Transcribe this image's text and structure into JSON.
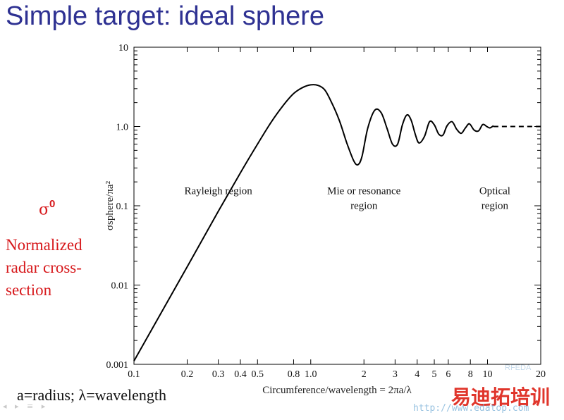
{
  "slide": {
    "title": "Simple target: ideal sphere",
    "side_symbol": "σ",
    "side_symbol_sup": "0",
    "side_description": [
      "Normalized",
      "radar cross-",
      "section"
    ],
    "footnote": "a=radius; λ=wavelength",
    "nav_glyphs": "◂ ▸ ≡ ▸"
  },
  "watermark": {
    "rf": "RFEDA",
    "cn": "易迪拓培训",
    "url": "http://www.edatop.com"
  },
  "colors": {
    "title": "#2e3192",
    "annotation": "#d7191c",
    "curve": "#000000"
  },
  "chart_data": {
    "type": "line",
    "xscale": "log",
    "yscale": "log",
    "xlim": [
      0.1,
      20
    ],
    "ylim": [
      0.001,
      10
    ],
    "xlabel": "Circumference/wavelength = 2πa/λ",
    "ylabel": "σsphere/πa²",
    "x_ticks": [
      {
        "v": 0.1,
        "label": "0.1"
      },
      {
        "v": 0.2,
        "label": "0.2"
      },
      {
        "v": 0.3,
        "label": "0.3"
      },
      {
        "v": 0.4,
        "label": "0.4"
      },
      {
        "v": 0.5,
        "label": "0.5"
      },
      {
        "v": 0.8,
        "label": "0.8"
      },
      {
        "v": 1.0,
        "label": "1.0"
      },
      {
        "v": 2,
        "label": "2"
      },
      {
        "v": 3,
        "label": "3"
      },
      {
        "v": 4,
        "label": "4"
      },
      {
        "v": 5,
        "label": "5"
      },
      {
        "v": 6,
        "label": "6"
      },
      {
        "v": 8,
        "label": "8"
      },
      {
        "v": 10,
        "label": "10"
      },
      {
        "v": 20,
        "label": "20"
      }
    ],
    "y_ticks": [
      {
        "v": 0.001,
        "label": "0.001"
      },
      {
        "v": 0.01,
        "label": "0.01"
      },
      {
        "v": 0.1,
        "label": "0.1"
      },
      {
        "v": 1.0,
        "label": "1.0"
      },
      {
        "v": 10,
        "label": "10"
      }
    ],
    "series": [
      {
        "style": "solid",
        "x": [
          0.1,
          0.2,
          0.3,
          0.4,
          0.5,
          0.6,
          0.7,
          0.8,
          0.9,
          1.0,
          1.1,
          1.2,
          1.3,
          1.45,
          1.6,
          1.75,
          1.85,
          1.95,
          2.1,
          2.3,
          2.5,
          2.7,
          2.9,
          3.1,
          3.3,
          3.5,
          3.7,
          3.9,
          4.1,
          4.4,
          4.7,
          5.0,
          5.3,
          5.6,
          5.9,
          6.3,
          6.7,
          7.1,
          7.5,
          7.9,
          8.4,
          8.9,
          9.4,
          9.9,
          10.3,
          10.8
        ],
        "y": [
          0.0011,
          0.017,
          0.085,
          0.26,
          0.6,
          1.15,
          1.85,
          2.6,
          3.1,
          3.35,
          3.3,
          2.9,
          2.1,
          1.2,
          0.62,
          0.37,
          0.33,
          0.42,
          0.95,
          1.6,
          1.5,
          0.95,
          0.6,
          0.6,
          1.05,
          1.4,
          1.2,
          0.8,
          0.62,
          0.75,
          1.15,
          1.05,
          0.8,
          0.78,
          1.02,
          1.15,
          0.92,
          0.82,
          0.96,
          1.08,
          0.9,
          0.88,
          1.06,
          1.0,
          0.96,
          1.02
        ]
      },
      {
        "style": "dashed",
        "x": [
          10.8,
          20
        ],
        "y": [
          1.0,
          1.0
        ]
      }
    ],
    "annotations": [
      {
        "lines": [
          "Rayleigh region"
        ],
        "x": 0.3,
        "y": 0.14
      },
      {
        "lines": [
          "Mie or resonance",
          "region"
        ],
        "x": 2.0,
        "y": 0.14
      },
      {
        "lines": [
          "Optical",
          "region"
        ],
        "x": 11,
        "y": 0.14
      }
    ]
  }
}
